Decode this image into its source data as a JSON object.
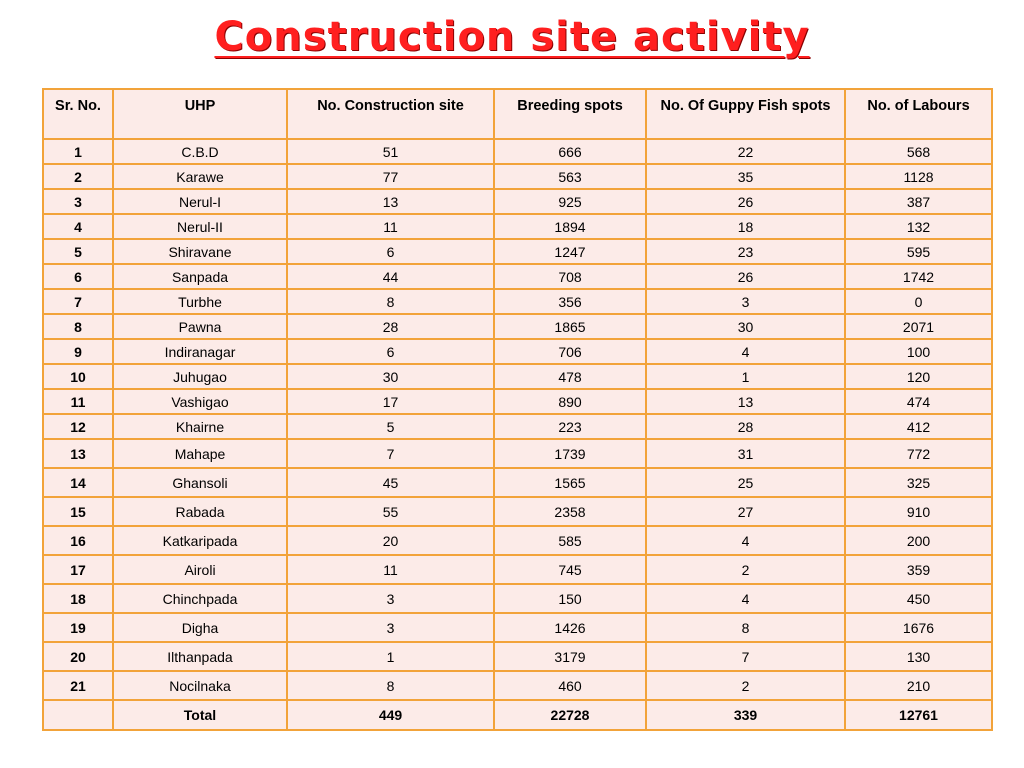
{
  "title": "Construction  site  activity",
  "headers": [
    "Sr. No.",
    "UHP",
    "No. Construction site",
    "Breeding spots",
    "No. Of Guppy Fish spots",
    "No. of Labours"
  ],
  "rows": [
    [
      "1",
      "C.B.D",
      "51",
      "666",
      "22",
      "568"
    ],
    [
      "2",
      "Karawe",
      "77",
      "563",
      "35",
      "1128"
    ],
    [
      "3",
      "Nerul-I",
      "13",
      "925",
      "26",
      "387"
    ],
    [
      "4",
      "Nerul-II",
      "11",
      "1894",
      "18",
      "132"
    ],
    [
      "5",
      "Shiravane",
      "6",
      "1247",
      "23",
      "595"
    ],
    [
      "6",
      "Sanpada",
      "44",
      "708",
      "26",
      "1742"
    ],
    [
      "7",
      "Turbhe",
      "8",
      "356",
      "3",
      "0"
    ],
    [
      "8",
      "Pawna",
      "28",
      "1865",
      "30",
      "2071"
    ],
    [
      "9",
      "Indiranagar",
      "6",
      "706",
      "4",
      "100"
    ],
    [
      "10",
      "Juhugao",
      "30",
      "478",
      "1",
      "120"
    ],
    [
      "11",
      "Vashigao",
      "17",
      "890",
      "13",
      "474"
    ],
    [
      "12",
      "Khairne",
      "5",
      "223",
      "28",
      "412"
    ],
    [
      "13",
      "Mahape",
      "7",
      "1739",
      "31",
      "772"
    ],
    [
      "14",
      "Ghansoli",
      "45",
      "1565",
      "25",
      "325"
    ],
    [
      "15",
      "Rabada",
      "55",
      "2358",
      "27",
      "910"
    ],
    [
      "16",
      "Katkaripada",
      "20",
      "585",
      "4",
      "200"
    ],
    [
      "17",
      "Airoli",
      "11",
      "745",
      "2",
      "359"
    ],
    [
      "18",
      "Chinchpada",
      "3",
      "150",
      "4",
      "450"
    ],
    [
      "19",
      "Digha",
      "3",
      "1426",
      "8",
      "1676"
    ],
    [
      "20",
      "Ilthanpada",
      "1",
      "3179",
      "7",
      "130"
    ],
    [
      "21",
      "Nocilnaka",
      "8",
      "460",
      "2",
      "210"
    ]
  ],
  "total": [
    "",
    "Total",
    "449",
    "22728",
    "339",
    "12761"
  ],
  "colors": {
    "title": "#ff1f1f",
    "border": "#f2a33a",
    "cell_fill": "#fcebe8"
  }
}
